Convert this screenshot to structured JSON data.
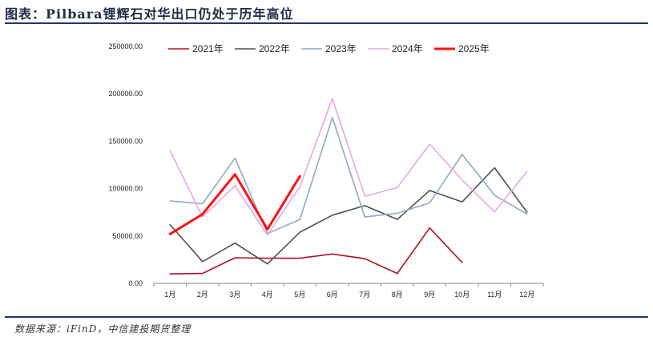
{
  "header": {
    "title": "图表：Pilbara锂辉石对华出口仍处于历年高位"
  },
  "footer": {
    "source": "数据来源：iFinD，中信建投期货整理"
  },
  "colors": {
    "rule": "#1f3864"
  },
  "chart_data": {
    "type": "line",
    "title": "",
    "xlabel": "",
    "ylabel": "",
    "categories": [
      "1月",
      "2月",
      "3月",
      "4月",
      "5月",
      "6月",
      "7月",
      "8月",
      "9月",
      "10月",
      "11月",
      "12月"
    ],
    "ylim": [
      0,
      250000
    ],
    "yticks": [
      "0.00",
      "50000.00",
      "100000.00",
      "150000.00",
      "200000.00",
      "250000.00"
    ],
    "grid": false,
    "legend_position": "top",
    "series": [
      {
        "name": "2021年",
        "color": "#b01020",
        "width": 1.6,
        "values": [
          10000,
          10500,
          27000,
          26500,
          26500,
          31000,
          26000,
          10500,
          58500,
          22000,
          null,
          null
        ]
      },
      {
        "name": "2022年",
        "color": "#505050",
        "width": 1.6,
        "values": [
          62000,
          23000,
          42500,
          20500,
          54000,
          72000,
          82000,
          67500,
          98000,
          86000,
          122000,
          75000
        ]
      },
      {
        "name": "2023年",
        "color": "#8ea9c8",
        "width": 1.6,
        "values": [
          87000,
          84000,
          132000,
          52500,
          67500,
          175000,
          70000,
          74000,
          85000,
          136000,
          93000,
          73000
        ]
      },
      {
        "name": "2024年",
        "color": "#e8a6e6",
        "width": 1.6,
        "values": [
          140000,
          70000,
          103000,
          51000,
          102000,
          195000,
          92000,
          101000,
          147000,
          109000,
          75500,
          118000
        ]
      },
      {
        "name": "2025年",
        "color": "#ff1010",
        "width": 3,
        "values": [
          52000,
          73000,
          115000,
          57000,
          113000,
          null,
          null,
          null,
          null,
          null,
          null,
          null
        ]
      }
    ]
  }
}
